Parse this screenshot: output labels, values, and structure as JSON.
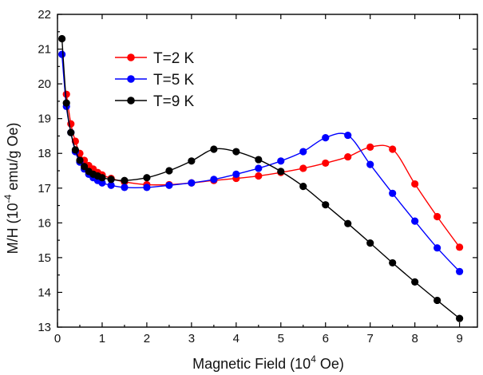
{
  "chart_data": {
    "type": "line",
    "title": "",
    "xlabel": {
      "pre": "Magnetic Field (10",
      "sup": "4",
      "post": " Oe)"
    },
    "ylabel": {
      "pre": "M/H (10",
      "sup": "-4",
      "post": " emu/g Oe)"
    },
    "xlim": [
      0,
      9.4
    ],
    "ylim": [
      13,
      22
    ],
    "xticks": [
      0,
      1,
      2,
      3,
      4,
      5,
      6,
      7,
      8,
      9
    ],
    "yticks": [
      13,
      14,
      15,
      16,
      17,
      18,
      19,
      20,
      21,
      22
    ],
    "grid": false,
    "legend_position": "top-left",
    "series": [
      {
        "name": "T=2 K",
        "color": "#ff0000",
        "x": [
          0.2,
          0.3,
          0.4,
          0.5,
          0.6,
          0.7,
          0.8,
          0.9,
          1.0,
          1.2,
          1.5,
          2.0,
          2.5,
          3.0,
          3.5,
          4.0,
          4.5,
          5.0,
          5.5,
          6.0,
          6.5,
          7.0,
          7.5,
          8.0,
          8.5,
          9.0
        ],
        "y": [
          19.7,
          18.85,
          18.35,
          18.0,
          17.8,
          17.65,
          17.55,
          17.45,
          17.38,
          17.28,
          17.18,
          17.1,
          17.1,
          17.15,
          17.22,
          17.28,
          17.35,
          17.45,
          17.57,
          17.72,
          17.9,
          18.18,
          18.12,
          17.12,
          16.18,
          15.3
        ]
      },
      {
        "name": "T=5 K",
        "color": "#0000ff",
        "x": [
          0.1,
          0.2,
          0.3,
          0.4,
          0.5,
          0.6,
          0.7,
          0.8,
          0.9,
          1.0,
          1.2,
          1.5,
          2.0,
          2.5,
          3.0,
          3.5,
          4.0,
          4.5,
          5.0,
          5.5,
          6.0,
          6.5,
          7.0,
          7.5,
          8.0,
          8.5,
          9.0
        ],
        "y": [
          20.85,
          19.35,
          18.6,
          18.05,
          17.75,
          17.55,
          17.4,
          17.3,
          17.22,
          17.15,
          17.08,
          17.02,
          17.02,
          17.08,
          17.15,
          17.25,
          17.4,
          17.57,
          17.78,
          18.05,
          18.45,
          18.52,
          17.68,
          16.85,
          16.05,
          15.28,
          14.6
        ]
      },
      {
        "name": "T=9 K",
        "color": "#000000",
        "x": [
          0.1,
          0.2,
          0.3,
          0.4,
          0.5,
          0.6,
          0.7,
          0.8,
          0.9,
          1.0,
          1.2,
          1.5,
          2.0,
          2.5,
          3.0,
          3.5,
          4.0,
          4.5,
          5.0,
          5.5,
          6.0,
          6.5,
          7.0,
          7.5,
          8.0,
          8.5,
          9.0
        ],
        "y": [
          21.3,
          19.45,
          18.6,
          18.1,
          17.8,
          17.62,
          17.48,
          17.4,
          17.35,
          17.3,
          17.25,
          17.22,
          17.3,
          17.5,
          17.78,
          18.12,
          18.05,
          17.82,
          17.48,
          17.05,
          16.52,
          15.98,
          15.42,
          14.85,
          14.3,
          13.77,
          13.25
        ]
      }
    ]
  }
}
